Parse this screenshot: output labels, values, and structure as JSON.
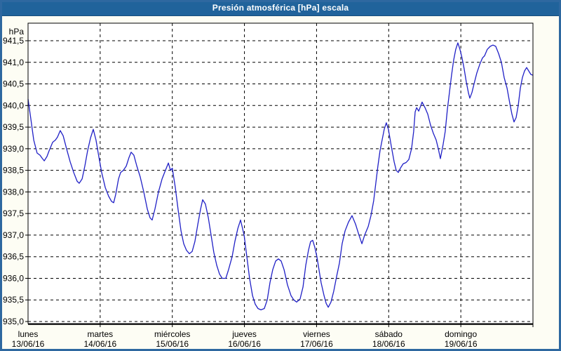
{
  "window": {
    "title": "Presión atmosférica [hPa] escala"
  },
  "chart_data": {
    "type": "line",
    "title": "Presión atmosférica [hPa] escala",
    "grid": "dashed",
    "legend": "none",
    "line_color": "#2020c6",
    "y_axis": {
      "unit_label": "hPa",
      "min": 935.0,
      "max": 941.5,
      "tick_step": 0.5,
      "tick_labels": [
        "941,5",
        "941,0",
        "940,5",
        "940,0",
        "939,5",
        "939,0",
        "938,5",
        "938,0",
        "937,5",
        "937,0",
        "936,5",
        "936,0",
        "935,5",
        "935,0"
      ]
    },
    "x_axis": {
      "hours_total": 168,
      "days": [
        {
          "name": "lunes",
          "date": "13/06/16"
        },
        {
          "name": "martes",
          "date": "14/06/16"
        },
        {
          "name": "miércoles",
          "date": "15/06/16"
        },
        {
          "name": "jueves",
          "date": "16/06/16"
        },
        {
          "name": "viernes",
          "date": "17/06/16"
        },
        {
          "name": "sábado",
          "date": "18/06/16"
        },
        {
          "name": "domingo",
          "date": "19/06/16"
        }
      ]
    },
    "series": [
      {
        "name": "Presión atmosférica [hPa]",
        "points": [
          [
            0,
            940.15
          ],
          [
            0.9,
            939.7
          ],
          [
            1.9,
            939.2
          ],
          [
            3,
            938.9
          ],
          [
            4,
            938.85
          ],
          [
            4.7,
            938.78
          ],
          [
            5.4,
            938.72
          ],
          [
            6.3,
            938.82
          ],
          [
            7,
            938.95
          ],
          [
            8.2,
            939.15
          ],
          [
            9.1,
            939.2
          ],
          [
            9.8,
            939.27
          ],
          [
            10.7,
            939.42
          ],
          [
            11.7,
            939.3
          ],
          [
            12.8,
            939.0
          ],
          [
            14,
            938.7
          ],
          [
            15.2,
            938.45
          ],
          [
            16.3,
            938.25
          ],
          [
            17,
            938.2
          ],
          [
            18,
            938.3
          ],
          [
            18.9,
            938.6
          ],
          [
            19.8,
            938.95
          ],
          [
            20.8,
            939.25
          ],
          [
            21.7,
            939.45
          ],
          [
            22.6,
            939.2
          ],
          [
            23.6,
            938.8
          ],
          [
            24.5,
            938.45
          ],
          [
            25.7,
            938.1
          ],
          [
            26.8,
            937.9
          ],
          [
            27.8,
            937.78
          ],
          [
            28.5,
            937.75
          ],
          [
            29.2,
            937.95
          ],
          [
            30.1,
            938.3
          ],
          [
            30.8,
            938.45
          ],
          [
            31.7,
            938.5
          ],
          [
            32.7,
            938.6
          ],
          [
            33.6,
            938.8
          ],
          [
            34.3,
            938.92
          ],
          [
            35.2,
            938.85
          ],
          [
            36.2,
            938.6
          ],
          [
            37.3,
            938.35
          ],
          [
            38.5,
            938.0
          ],
          [
            39.7,
            937.6
          ],
          [
            40.6,
            937.4
          ],
          [
            41.3,
            937.35
          ],
          [
            42.2,
            937.6
          ],
          [
            43.4,
            938.0
          ],
          [
            44.6,
            938.3
          ],
          [
            45.7,
            938.5
          ],
          [
            46.7,
            938.67
          ],
          [
            47.4,
            938.5
          ],
          [
            48,
            938.55
          ],
          [
            49,
            938.1
          ],
          [
            49.9,
            937.6
          ],
          [
            50.9,
            937.1
          ],
          [
            51.8,
            936.8
          ],
          [
            52.7,
            936.65
          ],
          [
            53.7,
            936.57
          ],
          [
            54.6,
            936.62
          ],
          [
            55.5,
            936.85
          ],
          [
            56.5,
            937.25
          ],
          [
            57.4,
            937.6
          ],
          [
            58.1,
            937.82
          ],
          [
            59,
            937.72
          ],
          [
            60,
            937.4
          ],
          [
            60.9,
            937.0
          ],
          [
            61.8,
            936.6
          ],
          [
            62.8,
            936.3
          ],
          [
            63.7,
            936.1
          ],
          [
            64.6,
            936.0
          ],
          [
            65.8,
            936.0
          ],
          [
            66.7,
            936.2
          ],
          [
            67.9,
            936.5
          ],
          [
            68.8,
            936.85
          ],
          [
            69.8,
            937.15
          ],
          [
            70.7,
            937.35
          ],
          [
            71.9,
            937.0
          ],
          [
            72.8,
            936.5
          ],
          [
            73.7,
            936.0
          ],
          [
            74.7,
            935.6
          ],
          [
            75.6,
            935.4
          ],
          [
            76.5,
            935.3
          ],
          [
            77.5,
            935.27
          ],
          [
            78.6,
            935.3
          ],
          [
            79.6,
            935.5
          ],
          [
            80.5,
            935.9
          ],
          [
            81.4,
            936.2
          ],
          [
            82.4,
            936.4
          ],
          [
            83.3,
            936.45
          ],
          [
            84.2,
            936.4
          ],
          [
            85.2,
            936.2
          ],
          [
            86.3,
            935.85
          ],
          [
            87.5,
            935.6
          ],
          [
            88.4,
            935.5
          ],
          [
            89.4,
            935.45
          ],
          [
            90.5,
            935.52
          ],
          [
            91.5,
            935.8
          ],
          [
            92.4,
            936.3
          ],
          [
            93.3,
            936.65
          ],
          [
            94,
            936.85
          ],
          [
            94.7,
            936.88
          ],
          [
            95.4,
            936.72
          ],
          [
            96.1,
            936.5
          ],
          [
            96.8,
            936.2
          ],
          [
            97.5,
            935.9
          ],
          [
            98.5,
            935.6
          ],
          [
            99.2,
            935.42
          ],
          [
            99.9,
            935.33
          ],
          [
            100.8,
            935.45
          ],
          [
            101.7,
            935.7
          ],
          [
            102.7,
            936.05
          ],
          [
            103.6,
            936.35
          ],
          [
            104.5,
            936.8
          ],
          [
            105.5,
            937.1
          ],
          [
            106.6,
            937.3
          ],
          [
            107.8,
            937.45
          ],
          [
            109,
            937.25
          ],
          [
            110.1,
            937.0
          ],
          [
            111.1,
            936.8
          ],
          [
            112,
            937.0
          ],
          [
            113.2,
            937.2
          ],
          [
            114.1,
            937.45
          ],
          [
            115,
            937.8
          ],
          [
            115.7,
            938.2
          ],
          [
            116.4,
            938.6
          ],
          [
            117.1,
            938.95
          ],
          [
            117.8,
            939.2
          ],
          [
            118.5,
            939.45
          ],
          [
            119.2,
            939.6
          ],
          [
            119.9,
            939.45
          ],
          [
            120.9,
            939.05
          ],
          [
            121.8,
            938.7
          ],
          [
            122.5,
            938.5
          ],
          [
            123.2,
            938.45
          ],
          [
            123.9,
            938.55
          ],
          [
            124.8,
            938.65
          ],
          [
            125.8,
            938.68
          ],
          [
            126.7,
            938.75
          ],
          [
            127.6,
            939.0
          ],
          [
            128.3,
            939.4
          ],
          [
            128.8,
            939.85
          ],
          [
            129.3,
            939.95
          ],
          [
            130,
            939.87
          ],
          [
            130.7,
            940.0
          ],
          [
            131.1,
            940.08
          ],
          [
            132.1,
            939.95
          ],
          [
            133,
            939.8
          ],
          [
            133.9,
            939.55
          ],
          [
            134.9,
            939.35
          ],
          [
            135.8,
            939.2
          ],
          [
            136.5,
            939.0
          ],
          [
            137.2,
            938.77
          ],
          [
            138.1,
            939.1
          ],
          [
            138.8,
            939.4
          ],
          [
            139.5,
            939.9
          ],
          [
            140.2,
            940.3
          ],
          [
            140.9,
            940.7
          ],
          [
            141.6,
            941.05
          ],
          [
            142.3,
            941.3
          ],
          [
            143,
            941.45
          ],
          [
            143.7,
            941.3
          ],
          [
            144.4,
            941.1
          ],
          [
            145.1,
            940.85
          ],
          [
            145.8,
            940.55
          ],
          [
            146.5,
            940.3
          ],
          [
            147,
            940.17
          ],
          [
            147.7,
            940.3
          ],
          [
            148.4,
            940.5
          ],
          [
            149.3,
            940.75
          ],
          [
            150.3,
            940.95
          ],
          [
            151.2,
            941.1
          ],
          [
            151.9,
            941.15
          ],
          [
            152.8,
            941.3
          ],
          [
            153.8,
            941.37
          ],
          [
            154.7,
            941.4
          ],
          [
            155.6,
            941.37
          ],
          [
            156.6,
            941.2
          ],
          [
            157.5,
            941.0
          ],
          [
            158.4,
            940.65
          ],
          [
            159.4,
            940.4
          ],
          [
            160.3,
            940.05
          ],
          [
            161,
            939.8
          ],
          [
            161.7,
            939.62
          ],
          [
            162.4,
            939.72
          ],
          [
            163.1,
            940.0
          ],
          [
            163.8,
            940.4
          ],
          [
            164.5,
            940.65
          ],
          [
            165.2,
            940.8
          ],
          [
            165.9,
            940.88
          ],
          [
            166.6,
            940.8
          ],
          [
            167.3,
            940.72
          ],
          [
            168,
            940.7
          ]
        ]
      }
    ]
  }
}
